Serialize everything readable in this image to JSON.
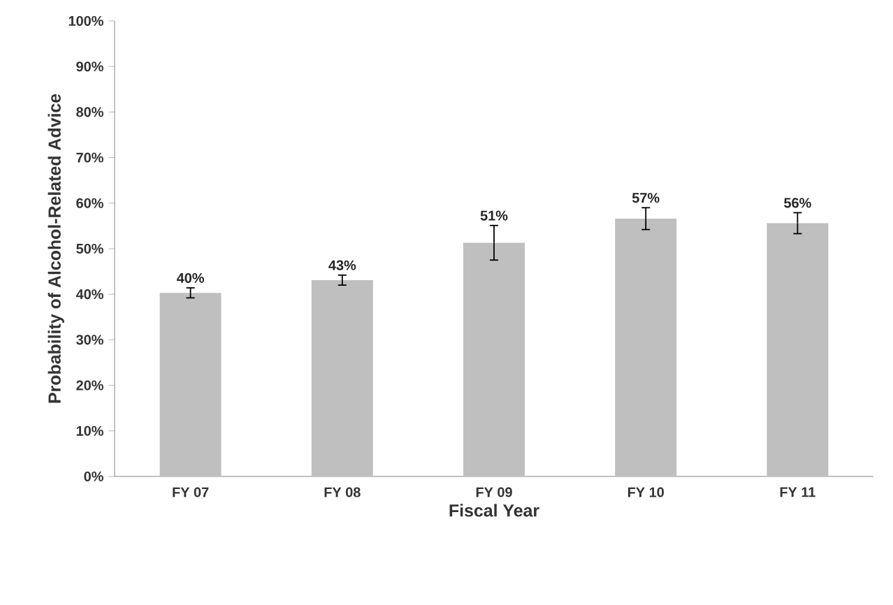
{
  "chart_data": {
    "type": "bar",
    "xlabel": "Fiscal Year",
    "ylabel": "Probability of Alcohol-Related Advice",
    "categories": [
      "FY 07",
      "FY 08",
      "FY 09",
      "FY 10",
      "FY 11"
    ],
    "values": [
      40.3,
      43.1,
      51.3,
      56.6,
      55.6
    ],
    "errors": [
      1.1,
      1.1,
      3.8,
      2.4,
      2.3
    ],
    "value_labels": [
      "40%",
      "43%",
      "51%",
      "57%",
      "56%"
    ],
    "color": "#bfbfbf",
    "ylim": [
      0,
      100
    ],
    "yticks": [
      {
        "value": 0,
        "label": "0%"
      },
      {
        "value": 10,
        "label": "10%"
      },
      {
        "value": 20,
        "label": "20%"
      },
      {
        "value": 30,
        "label": "30%"
      },
      {
        "value": 40,
        "label": "40%"
      },
      {
        "value": 50,
        "label": "50%"
      },
      {
        "value": 60,
        "label": "60%"
      },
      {
        "value": 70,
        "label": "70%"
      },
      {
        "value": 80,
        "label": "80%"
      },
      {
        "value": 90,
        "label": "90%"
      },
      {
        "value": 100,
        "label": "100%"
      }
    ],
    "orientation": "vertical"
  }
}
